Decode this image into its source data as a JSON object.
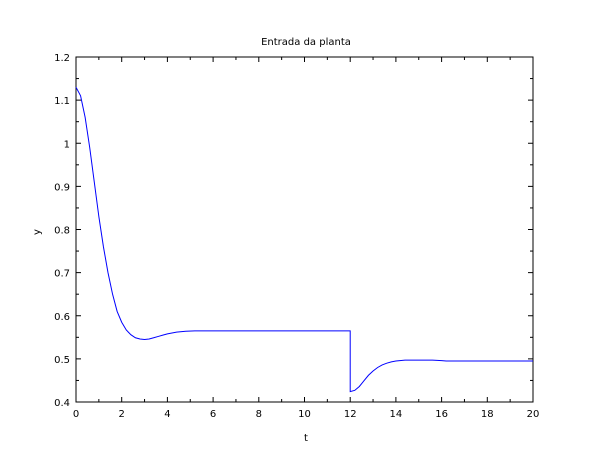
{
  "chart_data": {
    "type": "line",
    "title": "Entrada da planta",
    "xlabel": "t",
    "ylabel": "y",
    "xlim": [
      0,
      20
    ],
    "ylim": [
      0.4,
      1.2
    ],
    "x_ticks": [
      0,
      2,
      4,
      6,
      8,
      10,
      12,
      14,
      16,
      18,
      20
    ],
    "y_ticks": [
      0.4,
      0.5,
      0.6,
      0.7,
      0.8,
      0.9,
      1.0,
      1.1,
      1.2
    ],
    "x_tick_labels": [
      "0",
      "2",
      "4",
      "6",
      "8",
      "10",
      "12",
      "14",
      "16",
      "18",
      "20"
    ],
    "y_tick_labels": [
      "0.4",
      "0.5",
      "0.6",
      "0.7",
      "0.8",
      "0.9",
      "1",
      "1.1",
      "1.2"
    ],
    "grid": false,
    "line_color": "#0000ff",
    "series": [
      {
        "x": [
          0,
          0.2,
          0.4,
          0.6,
          0.8,
          1.0,
          1.2,
          1.4,
          1.6,
          1.8,
          2.0,
          2.2,
          2.4,
          2.6,
          2.8,
          3.0,
          3.2,
          3.4,
          3.6,
          3.8,
          4.0,
          4.4,
          4.8,
          5.2,
          5.6,
          6.0,
          7.0,
          8.0,
          9.0,
          10.0,
          11.0,
          12.0,
          12.0,
          12.2,
          12.4,
          12.6,
          12.8,
          13.0,
          13.2,
          13.4,
          13.6,
          13.8,
          14.0,
          14.4,
          14.8,
          15.2,
          15.6,
          16.0,
          16.2,
          17.0,
          18.0,
          19.0,
          20.0
        ],
        "y": [
          1.13,
          1.11,
          1.06,
          0.99,
          0.91,
          0.83,
          0.76,
          0.7,
          0.65,
          0.61,
          0.585,
          0.567,
          0.556,
          0.549,
          0.546,
          0.545,
          0.546,
          0.549,
          0.552,
          0.555,
          0.558,
          0.562,
          0.564,
          0.565,
          0.565,
          0.565,
          0.565,
          0.565,
          0.565,
          0.565,
          0.565,
          0.565,
          0.424,
          0.427,
          0.436,
          0.449,
          0.462,
          0.472,
          0.48,
          0.486,
          0.49,
          0.493,
          0.495,
          0.497,
          0.497,
          0.497,
          0.497,
          0.496,
          0.495,
          0.495,
          0.495,
          0.495,
          0.495
        ]
      }
    ]
  }
}
